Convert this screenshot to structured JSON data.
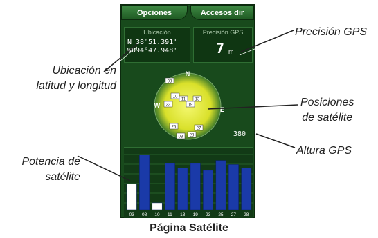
{
  "caption": "Página Satélite",
  "device": {
    "tabs": {
      "left": "Opciones",
      "right": "Accesos dir"
    },
    "location": {
      "label": "Ubicación",
      "lat": "N 38°51.391'",
      "lon": "W094°47.948'"
    },
    "precision": {
      "label": "Precisión GPS",
      "value": "7",
      "unit": "m"
    },
    "sky": {
      "north": "N",
      "west": "W",
      "east": "E",
      "altitude": "380"
    },
    "satellites": [
      "08",
      "10",
      "11",
      "13",
      "19",
      "23",
      "25",
      "27",
      "28",
      "03"
    ],
    "signal": {
      "ids": [
        "03",
        "08",
        "10",
        "11",
        "13",
        "19",
        "23",
        "25",
        "27",
        "28"
      ],
      "levels": [
        0.45,
        0.95,
        0.12,
        0.8,
        0.72,
        0.8,
        0.68,
        0.85,
        0.78,
        0.72
      ],
      "filled": [
        false,
        true,
        false,
        true,
        true,
        true,
        true,
        true,
        true,
        true
      ]
    }
  },
  "annotations": {
    "precision": "Precisión GPS",
    "location": [
      "Ubicación en",
      "latitud y longitud"
    ],
    "positions": [
      "Posiciones",
      "de satélite"
    ],
    "altitude": "Altura GPS",
    "power": [
      "Potencia de",
      "satélite"
    ]
  },
  "colors": {
    "device_bg": "#184a1c",
    "sky_glow": "#e8f040",
    "bar_filled": "#1a3aa8",
    "bar_empty": "#ffffff"
  }
}
